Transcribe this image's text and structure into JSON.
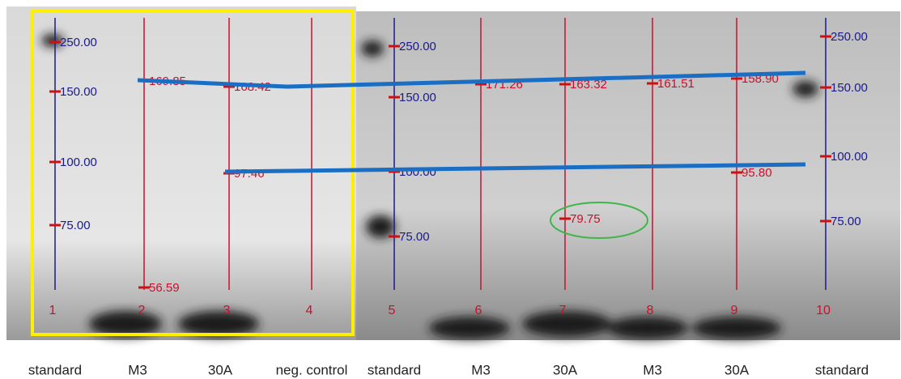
{
  "lanes": [
    {
      "number": "1",
      "label": "standard",
      "bands": [
        "250.00",
        "150.00",
        "100.00",
        "75.00"
      ]
    },
    {
      "number": "2",
      "label": "M3",
      "bands": [
        "169.85",
        "56.59"
      ]
    },
    {
      "number": "3",
      "label": "30A",
      "bands": [
        "168.42",
        "97.46"
      ]
    },
    {
      "number": "4",
      "label": "neg. control",
      "bands": []
    },
    {
      "number": "5",
      "label": "standard",
      "bands": [
        "250.00",
        "150.00",
        "100.00",
        "75.00"
      ]
    },
    {
      "number": "6",
      "label": "M3",
      "bands": [
        "171.26"
      ]
    },
    {
      "number": "7",
      "label": "30A",
      "bands": [
        "163.32",
        "79.75"
      ]
    },
    {
      "number": "8",
      "label": "M3",
      "bands": [
        "161.51"
      ]
    },
    {
      "number": "9",
      "label": "30A",
      "bands": [
        "158.90",
        "95.80"
      ]
    },
    {
      "number": "10",
      "label": "standard",
      "bands": [
        "250.00",
        "150.00",
        "100.00",
        "75.00"
      ]
    }
  ]
}
